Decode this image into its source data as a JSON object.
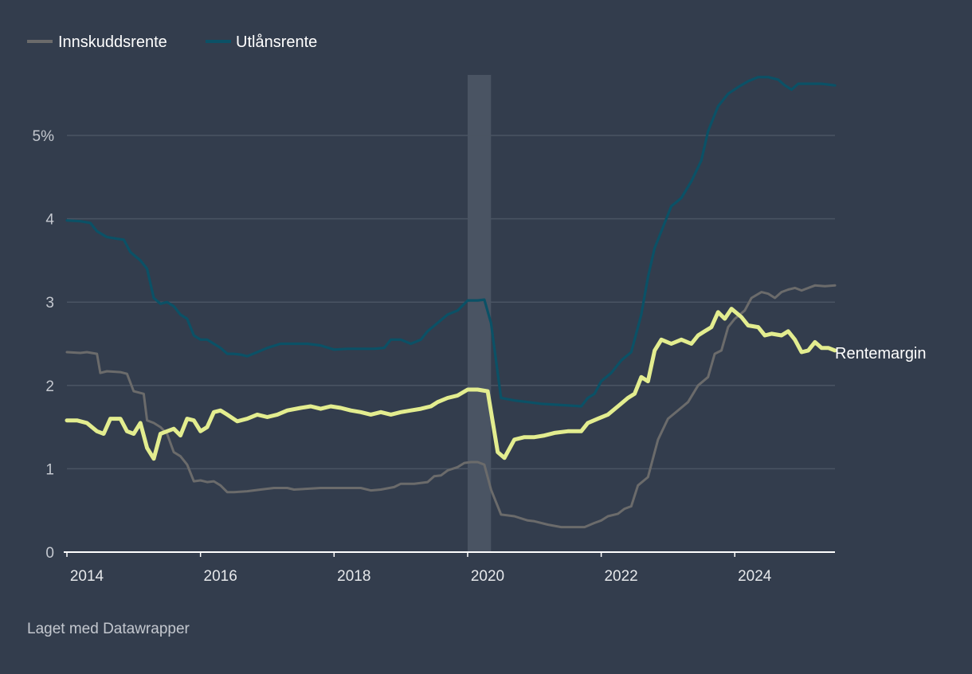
{
  "chart_data": {
    "type": "line",
    "title": "",
    "xlabel": "",
    "ylabel": "",
    "xlim": [
      2014,
      2025.5
    ],
    "ylim": [
      0,
      5.75
    ],
    "y_ticks": [
      "0",
      "1",
      "2",
      "3",
      "4",
      "5%"
    ],
    "x_ticks": [
      "2014",
      "2016",
      "2018",
      "2020",
      "2022",
      "2024"
    ],
    "grid": true,
    "legend_position": "top-left",
    "highlight_range": {
      "from": 2020.0,
      "to": 2020.35
    },
    "series": [
      {
        "name": "Innskuddsrente",
        "color": "#6b6b6b",
        "points": [
          [
            2014.0,
            2.4
          ],
          [
            2014.2,
            2.39
          ],
          [
            2014.3,
            2.4
          ],
          [
            2014.45,
            2.38
          ],
          [
            2014.5,
            2.15
          ],
          [
            2014.6,
            2.17
          ],
          [
            2014.8,
            2.16
          ],
          [
            2014.9,
            2.14
          ],
          [
            2015.0,
            1.93
          ],
          [
            2015.15,
            1.9
          ],
          [
            2015.2,
            1.58
          ],
          [
            2015.3,
            1.55
          ],
          [
            2015.4,
            1.5
          ],
          [
            2015.5,
            1.42
          ],
          [
            2015.6,
            1.2
          ],
          [
            2015.7,
            1.15
          ],
          [
            2015.8,
            1.05
          ],
          [
            2015.9,
            0.85
          ],
          [
            2016.0,
            0.86
          ],
          [
            2016.1,
            0.84
          ],
          [
            2016.2,
            0.85
          ],
          [
            2016.3,
            0.8
          ],
          [
            2016.4,
            0.72
          ],
          [
            2016.5,
            0.72
          ],
          [
            2016.7,
            0.73
          ],
          [
            2016.9,
            0.75
          ],
          [
            2017.1,
            0.77
          ],
          [
            2017.3,
            0.77
          ],
          [
            2017.4,
            0.75
          ],
          [
            2017.6,
            0.76
          ],
          [
            2017.8,
            0.77
          ],
          [
            2018.0,
            0.77
          ],
          [
            2018.2,
            0.77
          ],
          [
            2018.4,
            0.77
          ],
          [
            2018.55,
            0.74
          ],
          [
            2018.7,
            0.75
          ],
          [
            2018.9,
            0.78
          ],
          [
            2019.0,
            0.82
          ],
          [
            2019.2,
            0.82
          ],
          [
            2019.4,
            0.84
          ],
          [
            2019.5,
            0.91
          ],
          [
            2019.6,
            0.92
          ],
          [
            2019.7,
            0.98
          ],
          [
            2019.85,
            1.02
          ],
          [
            2019.95,
            1.07
          ],
          [
            2020.05,
            1.08
          ],
          [
            2020.15,
            1.08
          ],
          [
            2020.25,
            1.05
          ],
          [
            2020.35,
            0.75
          ],
          [
            2020.5,
            0.45
          ],
          [
            2020.7,
            0.43
          ],
          [
            2020.9,
            0.38
          ],
          [
            2021.0,
            0.37
          ],
          [
            2021.2,
            0.33
          ],
          [
            2021.4,
            0.3
          ],
          [
            2021.6,
            0.3
          ],
          [
            2021.75,
            0.3
          ],
          [
            2021.9,
            0.35
          ],
          [
            2022.0,
            0.38
          ],
          [
            2022.1,
            0.43
          ],
          [
            2022.25,
            0.46
          ],
          [
            2022.35,
            0.52
          ],
          [
            2022.45,
            0.55
          ],
          [
            2022.55,
            0.8
          ],
          [
            2022.7,
            0.9
          ],
          [
            2022.85,
            1.35
          ],
          [
            2023.0,
            1.6
          ],
          [
            2023.15,
            1.7
          ],
          [
            2023.3,
            1.8
          ],
          [
            2023.45,
            2.0
          ],
          [
            2023.6,
            2.1
          ],
          [
            2023.7,
            2.38
          ],
          [
            2023.8,
            2.42
          ],
          [
            2023.9,
            2.7
          ],
          [
            2024.0,
            2.8
          ],
          [
            2024.15,
            2.9
          ],
          [
            2024.25,
            3.05
          ],
          [
            2024.4,
            3.12
          ],
          [
            2024.5,
            3.1
          ],
          [
            2024.6,
            3.05
          ],
          [
            2024.7,
            3.12
          ],
          [
            2024.8,
            3.15
          ],
          [
            2024.9,
            3.17
          ],
          [
            2025.0,
            3.14
          ],
          [
            2025.2,
            3.2
          ],
          [
            2025.35,
            3.19
          ],
          [
            2025.5,
            3.2
          ]
        ]
      },
      {
        "name": "Utlånsrente",
        "color": "#0b5166",
        "points": [
          [
            2014.0,
            3.98
          ],
          [
            2014.2,
            3.97
          ],
          [
            2014.35,
            3.95
          ],
          [
            2014.45,
            3.85
          ],
          [
            2014.6,
            3.78
          ],
          [
            2014.75,
            3.76
          ],
          [
            2014.85,
            3.75
          ],
          [
            2014.95,
            3.6
          ],
          [
            2015.1,
            3.5
          ],
          [
            2015.2,
            3.4
          ],
          [
            2015.3,
            3.05
          ],
          [
            2015.4,
            2.98
          ],
          [
            2015.5,
            3.0
          ],
          [
            2015.6,
            2.95
          ],
          [
            2015.7,
            2.85
          ],
          [
            2015.8,
            2.8
          ],
          [
            2015.9,
            2.6
          ],
          [
            2016.0,
            2.55
          ],
          [
            2016.1,
            2.55
          ],
          [
            2016.2,
            2.5
          ],
          [
            2016.3,
            2.45
          ],
          [
            2016.4,
            2.38
          ],
          [
            2016.5,
            2.38
          ],
          [
            2016.6,
            2.37
          ],
          [
            2016.7,
            2.35
          ],
          [
            2016.85,
            2.4
          ],
          [
            2017.0,
            2.45
          ],
          [
            2017.2,
            2.5
          ],
          [
            2017.4,
            2.5
          ],
          [
            2017.6,
            2.5
          ],
          [
            2017.8,
            2.48
          ],
          [
            2018.0,
            2.43
          ],
          [
            2018.2,
            2.44
          ],
          [
            2018.4,
            2.44
          ],
          [
            2018.6,
            2.44
          ],
          [
            2018.75,
            2.45
          ],
          [
            2018.85,
            2.55
          ],
          [
            2019.0,
            2.55
          ],
          [
            2019.15,
            2.5
          ],
          [
            2019.3,
            2.55
          ],
          [
            2019.4,
            2.65
          ],
          [
            2019.55,
            2.75
          ],
          [
            2019.7,
            2.85
          ],
          [
            2019.85,
            2.9
          ],
          [
            2020.0,
            3.02
          ],
          [
            2020.15,
            3.02
          ],
          [
            2020.25,
            3.03
          ],
          [
            2020.35,
            2.75
          ],
          [
            2020.5,
            1.85
          ],
          [
            2020.7,
            1.82
          ],
          [
            2020.9,
            1.8
          ],
          [
            2021.1,
            1.78
          ],
          [
            2021.3,
            1.77
          ],
          [
            2021.5,
            1.76
          ],
          [
            2021.7,
            1.75
          ],
          [
            2021.8,
            1.85
          ],
          [
            2021.9,
            1.9
          ],
          [
            2022.0,
            2.05
          ],
          [
            2022.15,
            2.15
          ],
          [
            2022.3,
            2.3
          ],
          [
            2022.45,
            2.4
          ],
          [
            2022.6,
            2.85
          ],
          [
            2022.7,
            3.3
          ],
          [
            2022.8,
            3.65
          ],
          [
            2022.9,
            3.85
          ],
          [
            2023.05,
            4.15
          ],
          [
            2023.2,
            4.25
          ],
          [
            2023.35,
            4.45
          ],
          [
            2023.5,
            4.7
          ],
          [
            2023.6,
            5.05
          ],
          [
            2023.75,
            5.35
          ],
          [
            2023.9,
            5.5
          ],
          [
            2024.05,
            5.58
          ],
          [
            2024.2,
            5.65
          ],
          [
            2024.35,
            5.7
          ],
          [
            2024.5,
            5.7
          ],
          [
            2024.65,
            5.67
          ],
          [
            2024.75,
            5.6
          ],
          [
            2024.85,
            5.55
          ],
          [
            2024.95,
            5.62
          ],
          [
            2025.1,
            5.62
          ],
          [
            2025.3,
            5.62
          ],
          [
            2025.5,
            5.6
          ]
        ]
      },
      {
        "name": "Rentemargin",
        "color": "#e3ed8f",
        "points": [
          [
            2014.0,
            1.58
          ],
          [
            2014.15,
            1.58
          ],
          [
            2014.3,
            1.55
          ],
          [
            2014.45,
            1.45
          ],
          [
            2014.55,
            1.42
          ],
          [
            2014.65,
            1.6
          ],
          [
            2014.8,
            1.6
          ],
          [
            2014.9,
            1.45
          ],
          [
            2015.0,
            1.42
          ],
          [
            2015.1,
            1.55
          ],
          [
            2015.2,
            1.25
          ],
          [
            2015.3,
            1.12
          ],
          [
            2015.4,
            1.42
          ],
          [
            2015.5,
            1.45
          ],
          [
            2015.6,
            1.48
          ],
          [
            2015.7,
            1.4
          ],
          [
            2015.8,
            1.6
          ],
          [
            2015.9,
            1.58
          ],
          [
            2016.0,
            1.45
          ],
          [
            2016.1,
            1.5
          ],
          [
            2016.2,
            1.68
          ],
          [
            2016.3,
            1.7
          ],
          [
            2016.4,
            1.65
          ],
          [
            2016.55,
            1.57
          ],
          [
            2016.7,
            1.6
          ],
          [
            2016.85,
            1.65
          ],
          [
            2017.0,
            1.62
          ],
          [
            2017.15,
            1.65
          ],
          [
            2017.3,
            1.7
          ],
          [
            2017.5,
            1.73
          ],
          [
            2017.65,
            1.75
          ],
          [
            2017.8,
            1.72
          ],
          [
            2017.95,
            1.75
          ],
          [
            2018.1,
            1.73
          ],
          [
            2018.25,
            1.7
          ],
          [
            2018.4,
            1.68
          ],
          [
            2018.55,
            1.65
          ],
          [
            2018.7,
            1.68
          ],
          [
            2018.85,
            1.65
          ],
          [
            2019.0,
            1.68
          ],
          [
            2019.15,
            1.7
          ],
          [
            2019.3,
            1.72
          ],
          [
            2019.45,
            1.75
          ],
          [
            2019.55,
            1.8
          ],
          [
            2019.7,
            1.85
          ],
          [
            2019.85,
            1.88
          ],
          [
            2020.0,
            1.95
          ],
          [
            2020.15,
            1.95
          ],
          [
            2020.3,
            1.93
          ],
          [
            2020.45,
            1.2
          ],
          [
            2020.55,
            1.13
          ],
          [
            2020.7,
            1.35
          ],
          [
            2020.85,
            1.38
          ],
          [
            2021.0,
            1.38
          ],
          [
            2021.15,
            1.4
          ],
          [
            2021.3,
            1.43
          ],
          [
            2021.5,
            1.45
          ],
          [
            2021.7,
            1.45
          ],
          [
            2021.8,
            1.55
          ],
          [
            2021.95,
            1.6
          ],
          [
            2022.1,
            1.65
          ],
          [
            2022.25,
            1.75
          ],
          [
            2022.4,
            1.85
          ],
          [
            2022.5,
            1.9
          ],
          [
            2022.6,
            2.1
          ],
          [
            2022.7,
            2.05
          ],
          [
            2022.8,
            2.42
          ],
          [
            2022.9,
            2.55
          ],
          [
            2023.05,
            2.5
          ],
          [
            2023.2,
            2.55
          ],
          [
            2023.35,
            2.5
          ],
          [
            2023.45,
            2.6
          ],
          [
            2023.55,
            2.65
          ],
          [
            2023.65,
            2.7
          ],
          [
            2023.75,
            2.88
          ],
          [
            2023.85,
            2.8
          ],
          [
            2023.95,
            2.92
          ],
          [
            2024.1,
            2.82
          ],
          [
            2024.2,
            2.72
          ],
          [
            2024.35,
            2.7
          ],
          [
            2024.45,
            2.6
          ],
          [
            2024.55,
            2.62
          ],
          [
            2024.7,
            2.6
          ],
          [
            2024.8,
            2.65
          ],
          [
            2024.9,
            2.55
          ],
          [
            2025.0,
            2.4
          ],
          [
            2025.1,
            2.42
          ],
          [
            2025.2,
            2.52
          ],
          [
            2025.3,
            2.45
          ],
          [
            2025.4,
            2.45
          ],
          [
            2025.5,
            2.42
          ]
        ]
      }
    ],
    "end_label": "Rentemargin",
    "legend": [
      "Innskuddsrente",
      "Utlånsrente"
    ]
  },
  "credit": "Laget med Datawrapper",
  "colors": {
    "background": "#333d4d",
    "grid": "#4a5463",
    "baseline": "#ffffff",
    "highlight": "#4a5463"
  }
}
